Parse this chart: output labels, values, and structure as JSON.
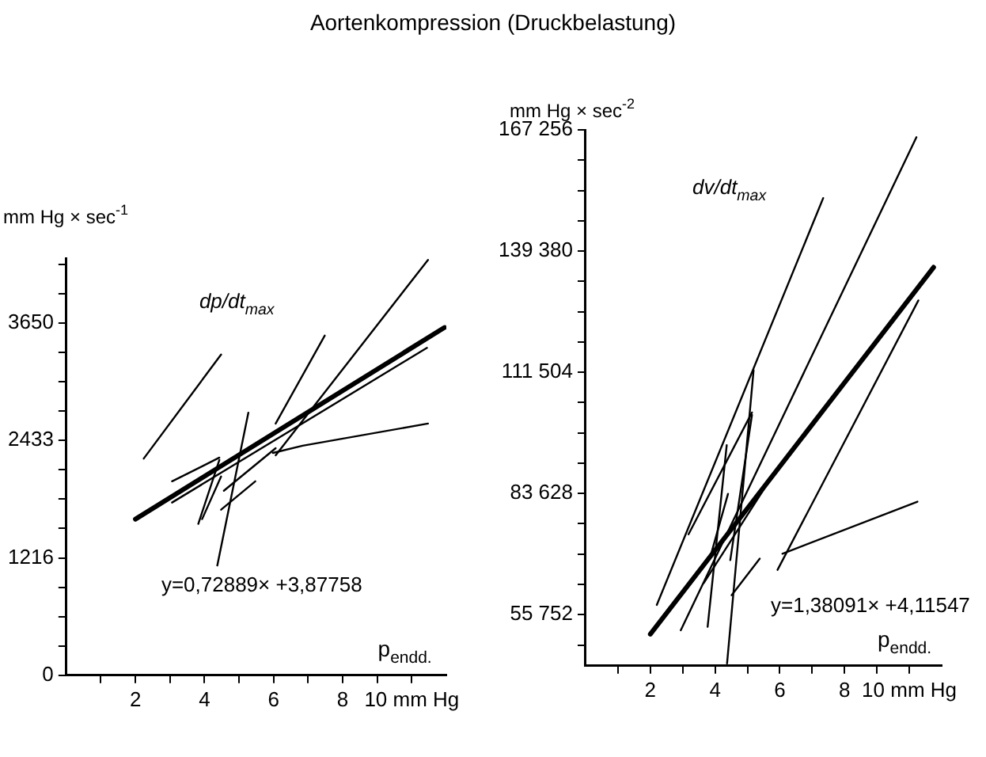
{
  "chart_data": [
    {
      "type": "line",
      "title": "Aortenkompression (Druckbelastung)",
      "ylabel": "mm Hg × sec$^{-1}$",
      "xlabel": "p$_{endd.}$",
      "annotations": [
        "dp/dt$_{max}$",
        "y=0,72889× +3,87758"
      ],
      "xlim": [
        0,
        11
      ],
      "ylim": [
        0,
        4320
      ],
      "xticks": [
        {
          "value": 1,
          "label": null
        },
        2,
        {
          "value": 3,
          "label": null
        },
        4,
        {
          "value": 5,
          "label": null
        },
        6,
        {
          "value": 7,
          "label": null
        },
        8,
        {
          "value": 9,
          "label": null
        },
        {
          "value": 10,
          "label": "10 mm Hg"
        }
      ],
      "yticks": [
        0,
        {
          "value": 304,
          "label": null
        },
        {
          "value": 608,
          "label": null
        },
        {
          "value": 912,
          "label": null
        },
        1216,
        {
          "value": 1520,
          "label": null
        },
        {
          "value": 1825,
          "label": null
        },
        {
          "value": 2129,
          "label": null
        },
        2433,
        {
          "value": 2737,
          "label": null
        },
        {
          "value": 3041,
          "label": null
        },
        {
          "value": 3346,
          "label": null
        },
        3650,
        {
          "value": 3954,
          "label": null
        },
        {
          "value": 4258,
          "label": null
        }
      ],
      "grid": false,
      "legend": false,
      "marker": "none",
      "line_style": "solid",
      "series": [
        {
          "color": "#000000",
          "x": [
            2.0,
            10.95
          ],
          "values": [
            1617,
            3602
          ]
        },
        {
          "color": "#000000",
          "x": [
            2.24,
            4.48
          ],
          "values": [
            2244,
            3322
          ]
        },
        {
          "color": "#000000",
          "x": [
            6.06,
            7.48
          ],
          "values": [
            2607,
            3518
          ]
        },
        {
          "color": "#000000",
          "x": [
            6.06,
            10.47
          ],
          "values": [
            2279,
            4302
          ]
        },
        {
          "color": "#000000",
          "x": [
            5.98,
            6.84,
            10.47
          ],
          "values": [
            2303,
            2377,
            2607
          ]
        },
        {
          "color": "#000000",
          "x": [
            3.06,
            10.44
          ],
          "values": [
            1789,
            3391
          ]
        },
        {
          "color": "#000000",
          "x": [
            3.06,
            4.43
          ],
          "values": [
            2009,
            2254
          ]
        },
        {
          "color": "#000000",
          "x": [
            3.82,
            4.43
          ],
          "values": [
            1568,
            2230
          ]
        },
        {
          "color": "#000000",
          "x": [
            3.93,
            4.48
          ],
          "values": [
            1617,
            2058
          ]
        },
        {
          "color": "#000000",
          "x": [
            4.37,
            5.27
          ],
          "values": [
            1137,
            2720
          ]
        },
        {
          "color": "#000000",
          "x": [
            4.48,
            5.47
          ],
          "values": [
            1715,
            2009
          ]
        },
        {
          "color": "#000000",
          "x": [
            4.56,
            6.06
          ],
          "values": [
            1911,
            2352
          ]
        }
      ]
    },
    {
      "type": "line",
      "ylabel": "mm Hg × sec$^{-2}$",
      "xlabel": "p$_{endd.}$",
      "annotations": [
        "dv/dt$_{max}$",
        "y=1,38091× +4,11547"
      ],
      "xlim": [
        0,
        11
      ],
      "ylim": [
        44000,
        167256
      ],
      "xticks": [
        {
          "value": 1,
          "label": null
        },
        2,
        {
          "value": 3,
          "label": null
        },
        4,
        {
          "value": 5,
          "label": null
        },
        6,
        {
          "value": 7,
          "label": null
        },
        8,
        {
          "value": 9,
          "label": null
        },
        {
          "value": 10,
          "label": "10 mm Hg"
        }
      ],
      "yticks": [
        {
          "value": 48783,
          "label": null
        },
        {
          "value": 55752,
          "label": "55 752"
        },
        {
          "value": 62721,
          "label": null
        },
        {
          "value": 69690,
          "label": null
        },
        {
          "value": 76659,
          "label": null
        },
        {
          "value": 83628,
          "label": "83 628"
        },
        {
          "value": 90597,
          "label": null
        },
        {
          "value": 97566,
          "label": null
        },
        {
          "value": 104535,
          "label": null
        },
        {
          "value": 111504,
          "label": "111 504"
        },
        {
          "value": 118473,
          "label": null
        },
        {
          "value": 125442,
          "label": null
        },
        {
          "value": 132411,
          "label": null
        },
        {
          "value": 139380,
          "label": "139 380"
        },
        {
          "value": 146349,
          "label": null
        },
        {
          "value": 153318,
          "label": null
        },
        {
          "value": 160287,
          "label": null
        },
        {
          "value": 167256,
          "label": "167 256"
        }
      ],
      "grid": false,
      "legend": false,
      "marker": "none",
      "line_style": "solid",
      "series": [
        {
          "color": "#000000",
          "x": [
            2.0,
            10.75
          ],
          "values": [
            51270,
            135651
          ]
        },
        {
          "color": "#000000",
          "x": [
            2.2,
            7.34
          ],
          "values": [
            57993,
            151563
          ]
        },
        {
          "color": "#000000",
          "x": [
            2.94,
            10.22
          ],
          "values": [
            52166,
            165571
          ]
        },
        {
          "color": "#000000",
          "x": [
            5.93,
            10.28
          ],
          "values": [
            66062,
            128030
          ]
        },
        {
          "color": "#000000",
          "x": [
            6.08,
            10.25
          ],
          "values": [
            69759,
            81750
          ]
        },
        {
          "color": "#000000",
          "x": [
            3.18,
            5.14
          ],
          "values": [
            74242,
            102257
          ]
        },
        {
          "color": "#000000",
          "x": [
            3.77,
            4.36
          ],
          "values": [
            52950,
            94749
          ]
        },
        {
          "color": "#000000",
          "x": [
            3.88,
            4.4
          ],
          "values": [
            69760,
            83543
          ]
        },
        {
          "color": "#000000",
          "x": [
            4.37,
            5.19
          ],
          "values": [
            44546,
            112006
          ]
        },
        {
          "color": "#000000",
          "x": [
            4.47,
            5.14
          ],
          "values": [
            68303,
            101697
          ]
        },
        {
          "color": "#000000",
          "x": [
            4.51,
            5.38
          ],
          "values": [
            60234,
            68640
          ]
        },
        {
          "color": "#000000",
          "x": [
            3.65,
            5.82
          ],
          "values": [
            63036,
            88249
          ]
        }
      ]
    }
  ]
}
